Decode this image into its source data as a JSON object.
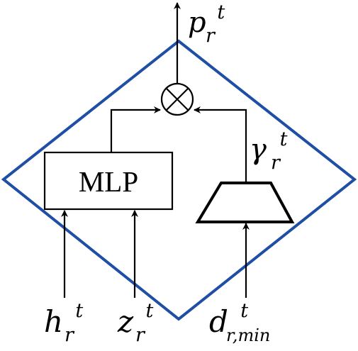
{
  "diagram": {
    "colors": {
      "diamond_border": "#1f4fa5",
      "lines": "#000000",
      "background": "#ffffff"
    },
    "nodes": {
      "mlp": {
        "label": "MLP"
      },
      "multiply": {
        "symbol": "⊗"
      },
      "trapezoid": {
        "shape": "trapezoid"
      }
    },
    "labels": {
      "output": {
        "base": "p",
        "sup": "t",
        "sub": "r"
      },
      "gamma": {
        "base": "γ",
        "sup": "t",
        "sub": "r"
      },
      "h": {
        "base": "h",
        "sup": "t",
        "sub": "r"
      },
      "z": {
        "base": "z",
        "sup": "t",
        "sub": "r"
      },
      "d": {
        "base": "d",
        "sup": "t",
        "sub": "r,min"
      }
    }
  }
}
